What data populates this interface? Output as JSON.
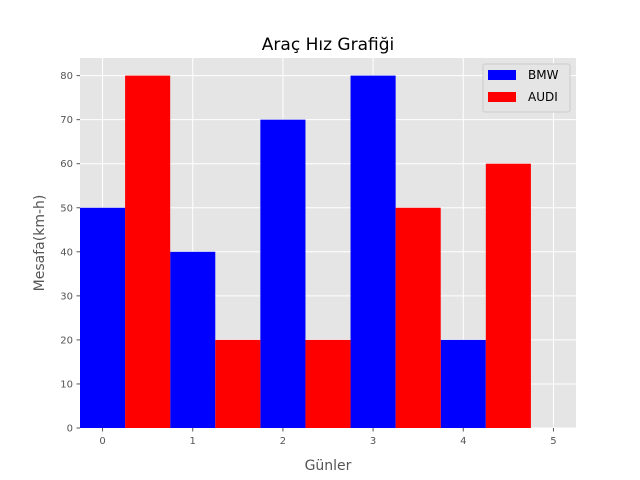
{
  "chart_data": {
    "type": "bar",
    "title": "Araç Hız Grafiği",
    "xlabel": "Günler",
    "ylabel": "Mesafa(km-h)",
    "xlim": [
      -0.25,
      5.25
    ],
    "ylim": [
      0,
      84
    ],
    "xticks": [
      0,
      1,
      2,
      3,
      4,
      5
    ],
    "yticks": [
      0,
      10,
      20,
      30,
      40,
      50,
      60,
      70,
      80
    ],
    "bar_width": 0.5,
    "grid": true,
    "legend_position": "top-right",
    "series": [
      {
        "name": "BMW",
        "color": "#0000ff",
        "x": [
          0,
          1,
          2,
          3,
          4
        ],
        "values": [
          50,
          40,
          70,
          80,
          20
        ]
      },
      {
        "name": "AUDI",
        "color": "#ff0000",
        "x": [
          0.5,
          1.5,
          2.5,
          3.5,
          4.5
        ],
        "values": [
          80,
          20,
          20,
          50,
          60
        ]
      }
    ]
  }
}
